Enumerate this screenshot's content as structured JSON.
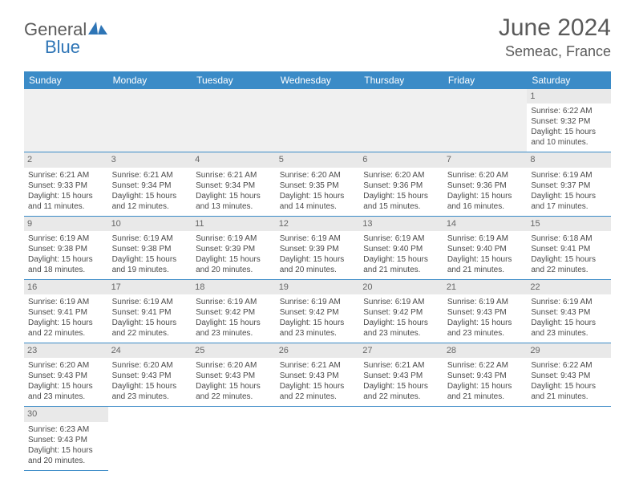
{
  "brand": {
    "part1": "General",
    "part2": "Blue"
  },
  "title": "June 2024",
  "location": "Semeac, France",
  "header_color": "#3b8bc7",
  "grid_line_color": "#3b8bc7",
  "daynum_bg": "#e9e9e9",
  "text_color": "#4a4a4a",
  "weekdays": [
    "Sunday",
    "Monday",
    "Tuesday",
    "Wednesday",
    "Thursday",
    "Friday",
    "Saturday"
  ],
  "month_start_weekday": 6,
  "days_in_month": 30,
  "days": {
    "1": {
      "sunrise": "6:22 AM",
      "sunset": "9:32 PM",
      "daylight": "15 hours and 10 minutes."
    },
    "2": {
      "sunrise": "6:21 AM",
      "sunset": "9:33 PM",
      "daylight": "15 hours and 11 minutes."
    },
    "3": {
      "sunrise": "6:21 AM",
      "sunset": "9:34 PM",
      "daylight": "15 hours and 12 minutes."
    },
    "4": {
      "sunrise": "6:21 AM",
      "sunset": "9:34 PM",
      "daylight": "15 hours and 13 minutes."
    },
    "5": {
      "sunrise": "6:20 AM",
      "sunset": "9:35 PM",
      "daylight": "15 hours and 14 minutes."
    },
    "6": {
      "sunrise": "6:20 AM",
      "sunset": "9:36 PM",
      "daylight": "15 hours and 15 minutes."
    },
    "7": {
      "sunrise": "6:20 AM",
      "sunset": "9:36 PM",
      "daylight": "15 hours and 16 minutes."
    },
    "8": {
      "sunrise": "6:19 AM",
      "sunset": "9:37 PM",
      "daylight": "15 hours and 17 minutes."
    },
    "9": {
      "sunrise": "6:19 AM",
      "sunset": "9:38 PM",
      "daylight": "15 hours and 18 minutes."
    },
    "10": {
      "sunrise": "6:19 AM",
      "sunset": "9:38 PM",
      "daylight": "15 hours and 19 minutes."
    },
    "11": {
      "sunrise": "6:19 AM",
      "sunset": "9:39 PM",
      "daylight": "15 hours and 20 minutes."
    },
    "12": {
      "sunrise": "6:19 AM",
      "sunset": "9:39 PM",
      "daylight": "15 hours and 20 minutes."
    },
    "13": {
      "sunrise": "6:19 AM",
      "sunset": "9:40 PM",
      "daylight": "15 hours and 21 minutes."
    },
    "14": {
      "sunrise": "6:19 AM",
      "sunset": "9:40 PM",
      "daylight": "15 hours and 21 minutes."
    },
    "15": {
      "sunrise": "6:18 AM",
      "sunset": "9:41 PM",
      "daylight": "15 hours and 22 minutes."
    },
    "16": {
      "sunrise": "6:19 AM",
      "sunset": "9:41 PM",
      "daylight": "15 hours and 22 minutes."
    },
    "17": {
      "sunrise": "6:19 AM",
      "sunset": "9:41 PM",
      "daylight": "15 hours and 22 minutes."
    },
    "18": {
      "sunrise": "6:19 AM",
      "sunset": "9:42 PM",
      "daylight": "15 hours and 23 minutes."
    },
    "19": {
      "sunrise": "6:19 AM",
      "sunset": "9:42 PM",
      "daylight": "15 hours and 23 minutes."
    },
    "20": {
      "sunrise": "6:19 AM",
      "sunset": "9:42 PM",
      "daylight": "15 hours and 23 minutes."
    },
    "21": {
      "sunrise": "6:19 AM",
      "sunset": "9:43 PM",
      "daylight": "15 hours and 23 minutes."
    },
    "22": {
      "sunrise": "6:19 AM",
      "sunset": "9:43 PM",
      "daylight": "15 hours and 23 minutes."
    },
    "23": {
      "sunrise": "6:20 AM",
      "sunset": "9:43 PM",
      "daylight": "15 hours and 23 minutes."
    },
    "24": {
      "sunrise": "6:20 AM",
      "sunset": "9:43 PM",
      "daylight": "15 hours and 23 minutes."
    },
    "25": {
      "sunrise": "6:20 AM",
      "sunset": "9:43 PM",
      "daylight": "15 hours and 22 minutes."
    },
    "26": {
      "sunrise": "6:21 AM",
      "sunset": "9:43 PM",
      "daylight": "15 hours and 22 minutes."
    },
    "27": {
      "sunrise": "6:21 AM",
      "sunset": "9:43 PM",
      "daylight": "15 hours and 22 minutes."
    },
    "28": {
      "sunrise": "6:22 AM",
      "sunset": "9:43 PM",
      "daylight": "15 hours and 21 minutes."
    },
    "29": {
      "sunrise": "6:22 AM",
      "sunset": "9:43 PM",
      "daylight": "15 hours and 21 minutes."
    },
    "30": {
      "sunrise": "6:23 AM",
      "sunset": "9:43 PM",
      "daylight": "15 hours and 20 minutes."
    }
  },
  "labels": {
    "sunrise": "Sunrise:",
    "sunset": "Sunset:",
    "daylight": "Daylight:"
  }
}
